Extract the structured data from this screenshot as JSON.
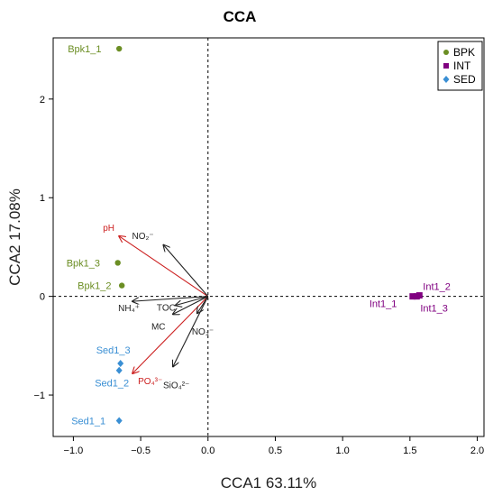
{
  "chart_data": {
    "type": "scatter",
    "title": "CCA",
    "xlabel": "CCA1  63.11%",
    "ylabel": "CCA2  17.08%",
    "xlim": [
      -1.15,
      2.05
    ],
    "ylim": [
      -1.42,
      2.62
    ],
    "xticks": [
      -1.0,
      -0.5,
      0.0,
      0.5,
      1.0,
      1.5,
      2.0
    ],
    "xtick_labels": [
      "−1.0",
      "−0.5",
      "0.0",
      "0.5",
      "1.0",
      "1.5",
      "2.0"
    ],
    "yticks": [
      -1,
      0,
      1,
      2
    ],
    "ytick_labels": [
      "−1",
      "0",
      "1",
      "2"
    ],
    "legend_position": "top-right",
    "series": [
      {
        "name": "BPK",
        "color": "#6b8e23",
        "marker": "circle",
        "points": [
          {
            "label": "Bpk1_1",
            "x": -0.66,
            "y": 2.51
          },
          {
            "label": "Bpk1_3",
            "x": -0.67,
            "y": 0.34
          },
          {
            "label": "Bpk1_2",
            "x": -0.64,
            "y": 0.11
          }
        ]
      },
      {
        "name": "INT",
        "color": "#800080",
        "marker": "square",
        "points": [
          {
            "label": "Int1_1",
            "x": 1.52,
            "y": 0.0
          },
          {
            "label": "Int1_2",
            "x": 1.57,
            "y": 0.01
          },
          {
            "label": "Int1_3",
            "x": 1.55,
            "y": 0.0
          }
        ]
      },
      {
        "name": "SED",
        "color": "#3a8fd4",
        "marker": "diamond",
        "points": [
          {
            "label": "Sed1_3",
            "x": -0.65,
            "y": -0.68
          },
          {
            "label": "Sed1_2",
            "x": -0.66,
            "y": -0.75
          },
          {
            "label": "Sed1_1",
            "x": -0.66,
            "y": -1.26
          }
        ]
      }
    ],
    "vectors": [
      {
        "label": "pH",
        "x": -0.66,
        "y": 0.61,
        "color": "#cc1f1f"
      },
      {
        "label": "PO₄³⁻",
        "x": -0.56,
        "y": -0.78,
        "color": "#cc1f1f"
      },
      {
        "label": "NO₂⁻",
        "x": -0.33,
        "y": 0.52,
        "color": "#222222"
      },
      {
        "label": "TOC",
        "x": -0.24,
        "y": -0.09,
        "color": "#222222"
      },
      {
        "label": "MC",
        "x": -0.26,
        "y": -0.18,
        "color": "#222222"
      },
      {
        "label": "NH₄⁺",
        "x": -0.56,
        "y": -0.05,
        "color": "#222222"
      },
      {
        "label": "NO₃⁻",
        "x": -0.08,
        "y": -0.17,
        "color": "#222222"
      },
      {
        "label": "SiO₄²⁻",
        "x": -0.26,
        "y": -0.71,
        "color": "#222222"
      }
    ]
  }
}
